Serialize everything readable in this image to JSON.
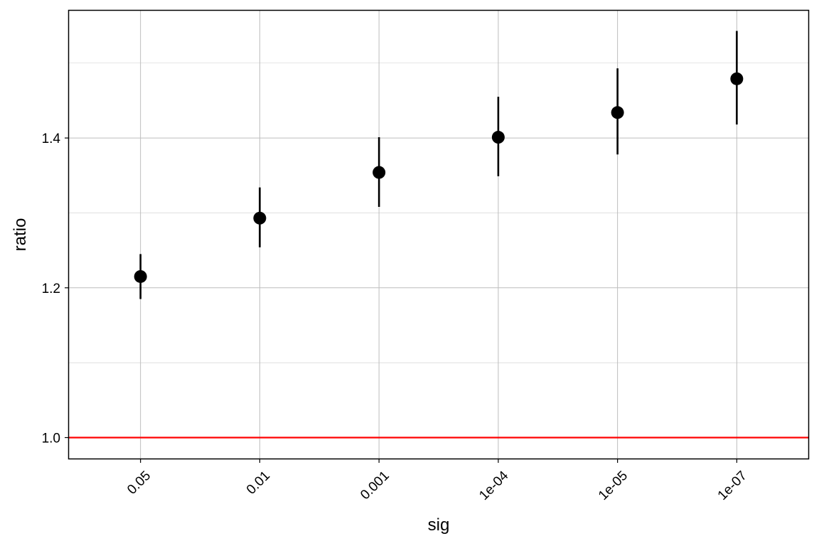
{
  "chart_data": {
    "type": "scatter",
    "title": "",
    "xlabel": "sig",
    "ylabel": "ratio",
    "categories": [
      "0.05",
      "0.01",
      "0.001",
      "1e-04",
      "1e-05",
      "1e-07"
    ],
    "series": [
      {
        "points": [
          {
            "x": "0.05",
            "y": 1.215,
            "ymin": 1.185,
            "ymax": 1.245
          },
          {
            "x": "0.01",
            "y": 1.293,
            "ymin": 1.254,
            "ymax": 1.334
          },
          {
            "x": "0.001",
            "y": 1.354,
            "ymin": 1.308,
            "ymax": 1.401
          },
          {
            "x": "1e-04",
            "y": 1.401,
            "ymin": 1.349,
            "ymax": 1.455
          },
          {
            "x": "1e-05",
            "y": 1.434,
            "ymin": 1.378,
            "ymax": 1.493
          },
          {
            "x": "1e-07",
            "y": 1.479,
            "ymin": 1.418,
            "ymax": 1.543
          }
        ]
      }
    ],
    "ylim": [
      0.972,
      1.57
    ],
    "yticks": [
      1.0,
      1.2,
      1.4
    ],
    "ytick_labels": [
      "1.0",
      "1.2",
      "1.4"
    ],
    "reference_line": {
      "y": 1.0,
      "color": "#ff0000"
    },
    "grid": true,
    "legend": "none",
    "colors": {
      "points": "#000000",
      "reference": "#ff0000",
      "grid": "#cccccc",
      "panel_border": "#000000"
    }
  }
}
